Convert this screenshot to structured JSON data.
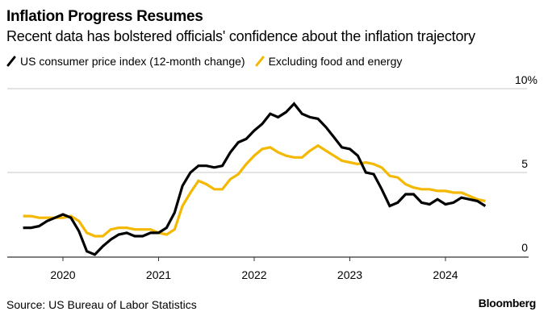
{
  "header": {
    "title": "Inflation Progress Resumes",
    "subtitle": "Recent data has bolstered officials' confidence about the inflation trajectory"
  },
  "footer": {
    "source": "Source: US Bureau of Labor Statistics",
    "brand": "Bloomberg"
  },
  "chart_data": {
    "type": "line",
    "title": "Inflation Progress Resumes",
    "subtitle": "Recent data has bolstered officials' confidence about the inflation trajectory",
    "xlabel": "",
    "ylabel": "",
    "x_start": "2019-08",
    "x_end": "2024-06",
    "x_frequency": "monthly",
    "xlim": [
      "2019-04",
      "2024-12"
    ],
    "x_ticks": [
      {
        "label": "2020",
        "date": "2020-01"
      },
      {
        "label": "2021",
        "date": "2021-01"
      },
      {
        "label": "2022",
        "date": "2022-01"
      },
      {
        "label": "2023",
        "date": "2023-01"
      },
      {
        "label": "2024",
        "date": "2024-01"
      }
    ],
    "ylim": [
      0,
      10
    ],
    "y_ticks": [
      {
        "value": 0,
        "label": "0"
      },
      {
        "value": 5,
        "label": "5"
      },
      {
        "value": 10,
        "label": "10%"
      }
    ],
    "grid": true,
    "y_axis_side": "right",
    "legend_position": "top-left",
    "series": [
      {
        "name": "US consumer price index (12-month change)",
        "color": "#000000",
        "values": [
          1.7,
          1.7,
          1.8,
          2.1,
          2.3,
          2.5,
          2.3,
          1.5,
          0.3,
          0.1,
          0.6,
          1.0,
          1.3,
          1.4,
          1.2,
          1.2,
          1.4,
          1.4,
          1.7,
          2.6,
          4.2,
          5.0,
          5.4,
          5.4,
          5.3,
          5.4,
          6.2,
          6.8,
          7.0,
          7.5,
          7.9,
          8.5,
          8.3,
          8.6,
          9.1,
          8.5,
          8.3,
          8.2,
          7.7,
          7.1,
          6.5,
          6.4,
          6.0,
          5.0,
          4.9,
          4.0,
          3.0,
          3.2,
          3.7,
          3.7,
          3.2,
          3.1,
          3.4,
          3.1,
          3.2,
          3.5,
          3.4,
          3.3,
          3.0
        ]
      },
      {
        "name": "Excluding food and energy",
        "color": "#f5b800",
        "values": [
          2.4,
          2.4,
          2.3,
          2.3,
          2.3,
          2.3,
          2.4,
          2.1,
          1.4,
          1.2,
          1.2,
          1.6,
          1.7,
          1.7,
          1.6,
          1.6,
          1.6,
          1.4,
          1.3,
          1.6,
          3.0,
          3.8,
          4.5,
          4.3,
          4.0,
          4.0,
          4.6,
          4.9,
          5.5,
          6.0,
          6.4,
          6.5,
          6.2,
          6.0,
          5.9,
          5.9,
          6.3,
          6.6,
          6.3,
          6.0,
          5.7,
          5.6,
          5.5,
          5.6,
          5.5,
          5.3,
          4.8,
          4.7,
          4.3,
          4.1,
          4.0,
          4.0,
          3.9,
          3.9,
          3.8,
          3.8,
          3.6,
          3.4,
          3.3
        ]
      }
    ]
  }
}
